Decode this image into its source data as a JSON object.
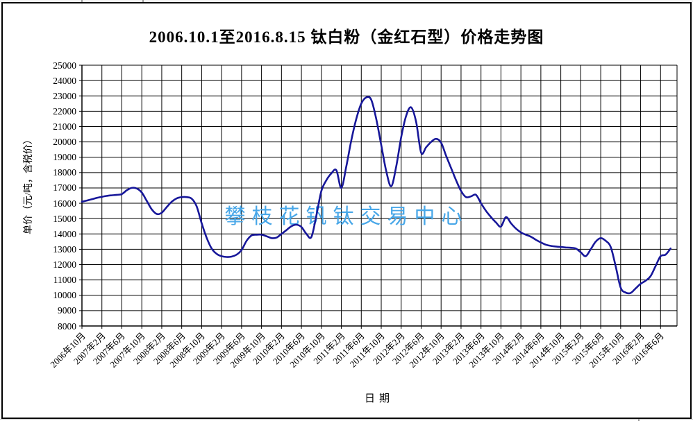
{
  "title": "2006.10.1至2016.8.15  钛白粉（金红石型）价格走势图",
  "watermark": "攀枝花钒钛交易中心",
  "colors": {
    "line": "#17179a",
    "watermark": "#48a7e8",
    "grid": "#000000",
    "text": "#000000"
  },
  "chart_data": {
    "type": "line",
    "title": "2006.10.1至2016.8.15  钛白粉（金红石型）价格走势图",
    "xlabel": "日期",
    "ylabel": "单价（元/吨，含税价）",
    "ylim": [
      8000,
      25000
    ],
    "ytick_step": 1000,
    "grid": true,
    "legend": false,
    "y_tick_labels": [
      "25000",
      "24000",
      "23000",
      "22000",
      "21000",
      "20000",
      "19000",
      "18000",
      "17000",
      "16000",
      "15000",
      "14000",
      "13000",
      "12000",
      "11000",
      "10000",
      "9000",
      "8000"
    ],
    "x_tick_labels": [
      "2006年10月",
      "2007年2月",
      "2007年6月",
      "2007年10月",
      "2008年2月",
      "2008年6月",
      "2008年10月",
      "2009年2月",
      "2009年6月",
      "2009年10月",
      "2010年2月",
      "2010年6月",
      "2010年10月",
      "2011年2月",
      "2011年6月",
      "2011年10月",
      "2012年2月",
      "2012年6月",
      "2012年10月",
      "2013年2月",
      "2013年6月",
      "2013年10月",
      "2014年2月",
      "2014年6月",
      "2014年10月",
      "2015年2月",
      "2015年6月",
      "2015年10月",
      "2016年2月",
      "2016年6月"
    ],
    "x_tick_interval_months": 4,
    "x_start_label": "2006年10月",
    "x_end_label": "2016年8月",
    "line_color": "#17179a",
    "values_monthly": [
      16100,
      16180,
      16260,
      16350,
      16420,
      16480,
      16520,
      16550,
      16600,
      16850,
      17000,
      16960,
      16700,
      16150,
      15600,
      15300,
      15380,
      15750,
      16100,
      16320,
      16400,
      16400,
      16300,
      15800,
      14700,
      13750,
      13050,
      12700,
      12550,
      12500,
      12520,
      12650,
      12950,
      13550,
      13900,
      13950,
      13950,
      13850,
      13730,
      13760,
      14000,
      14250,
      14500,
      14600,
      14450,
      14000,
      13800,
      15200,
      16800,
      17500,
      17950,
      18150,
      17000,
      18400,
      20100,
      21500,
      22500,
      22900,
      22750,
      21500,
      19800,
      18100,
      17100,
      18400,
      20300,
      21700,
      22250,
      21300,
      19300,
      19650,
      20000,
      20200,
      19950,
      19100,
      18300,
      17500,
      16800,
      16400,
      16450,
      16550,
      16000,
      15500,
      15100,
      14750,
      14480,
      15100,
      14700,
      14350,
      14100,
      13950,
      13820,
      13620,
      13450,
      13300,
      13220,
      13180,
      13150,
      13120,
      13100,
      13050,
      12800,
      12550,
      13000,
      13500,
      13730,
      13550,
      13150,
      11900,
      10500,
      10180,
      10150,
      10450,
      10750,
      10950,
      11250,
      11900,
      12550,
      12650,
      13050
    ]
  }
}
